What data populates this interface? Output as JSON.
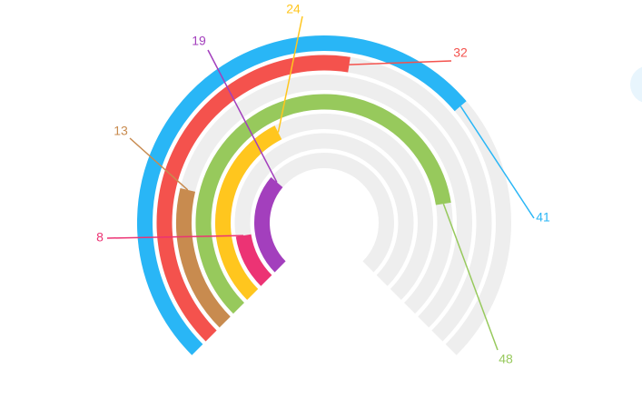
{
  "chart_data": {
    "type": "radial_bar",
    "max_value": 60,
    "track_color": "#eeeeee",
    "series": [
      {
        "label": "41",
        "value": 41,
        "color": "#29b6f6"
      },
      {
        "label": "32",
        "value": 32,
        "color": "#f4524d"
      },
      {
        "label": "13",
        "value": 13,
        "color": "#c88b4f"
      },
      {
        "label": "48",
        "value": 48,
        "color": "#97c95c"
      },
      {
        "label": "24",
        "value": 24,
        "color": "#ffc61e"
      },
      {
        "label": "8",
        "value": 8,
        "color": "#ec3374"
      },
      {
        "label": "19",
        "value": 19,
        "color": "#a33fbd"
      }
    ]
  }
}
